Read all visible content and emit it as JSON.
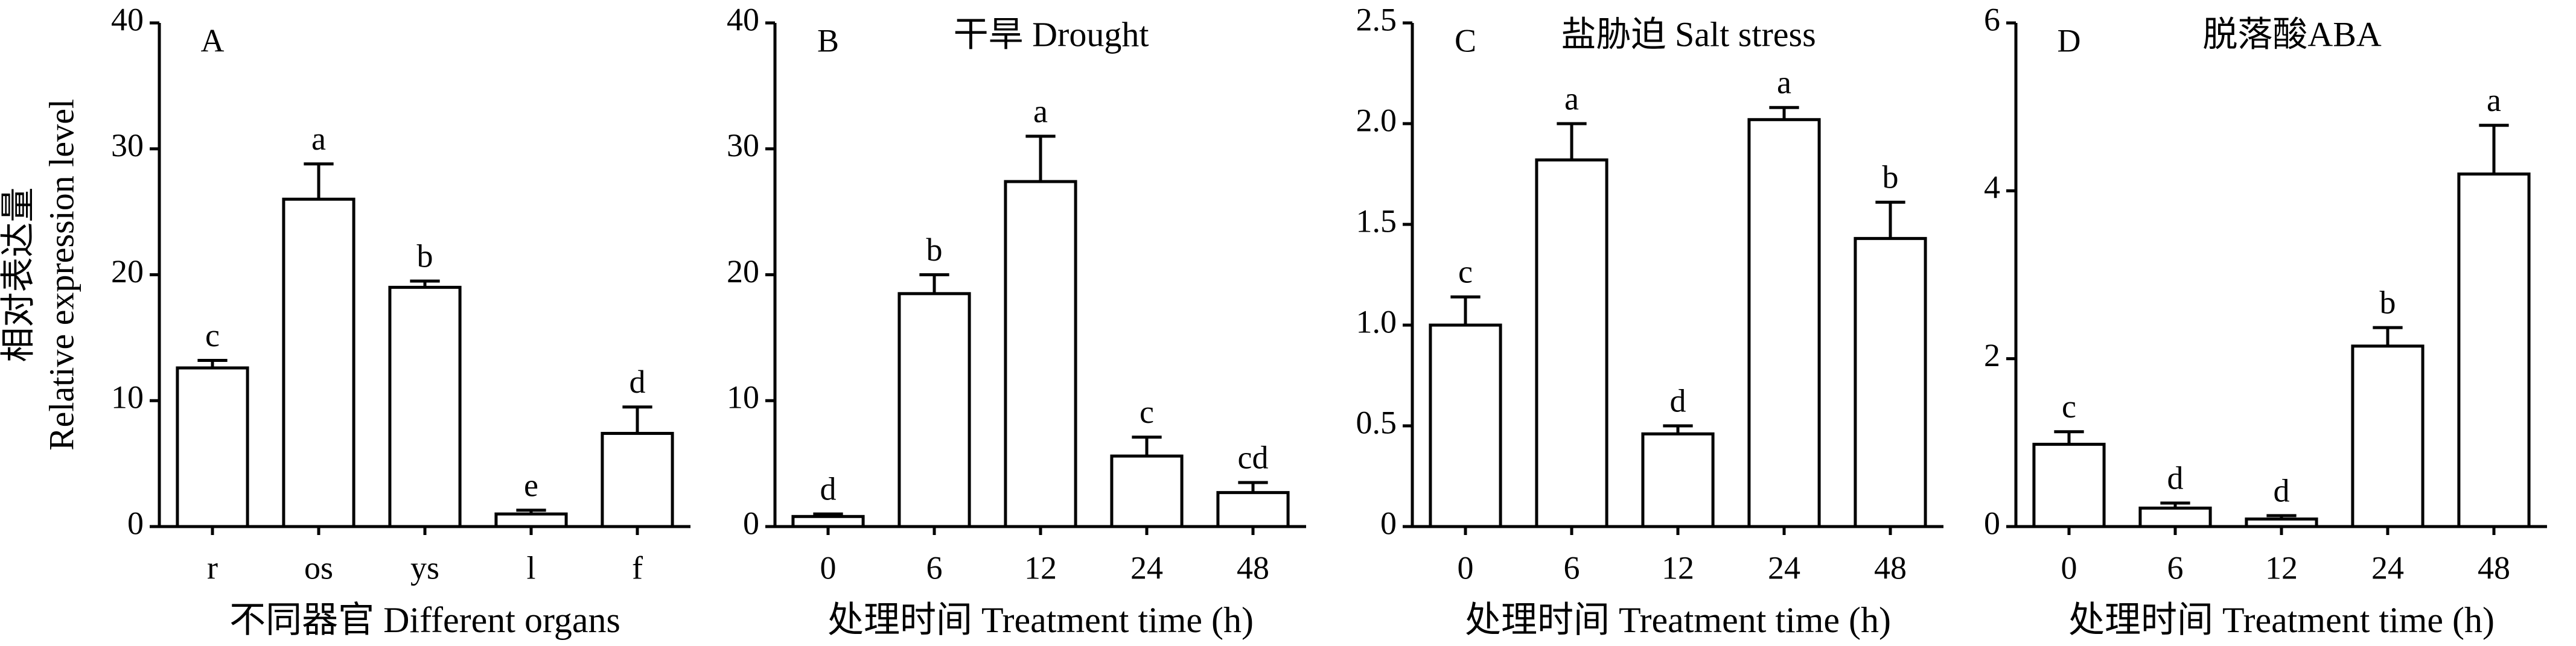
{
  "chart_data": [
    {
      "type": "bar",
      "title": "A",
      "ylabel": [
        "相对表达量",
        "Relative expression level"
      ],
      "xlabel": "不同器官 Different organs",
      "categories": [
        "r",
        "os",
        "ys",
        "l",
        "f"
      ],
      "values": [
        12.6,
        26,
        19,
        1.0,
        7.4
      ],
      "errors": [
        0.6,
        2.8,
        0.5,
        0.3,
        2.1
      ],
      "letters": [
        "c",
        "a",
        "b",
        "e",
        "d"
      ],
      "ylim": [
        0,
        40
      ],
      "yticks": [
        0,
        10,
        20,
        30,
        40
      ],
      "color": "#ffffff"
    },
    {
      "type": "bar",
      "title": "B",
      "subtitle": "干旱 Drought",
      "xlabel": "处理时间 Treatment time (h)",
      "categories": [
        "0",
        "6",
        "12",
        "24",
        "48"
      ],
      "values": [
        0.8,
        18.5,
        27.4,
        5.6,
        2.7
      ],
      "errors": [
        0.2,
        1.5,
        3.6,
        1.5,
        0.8
      ],
      "letters": [
        "d",
        "b",
        "a",
        "c",
        "cd"
      ],
      "ylim": [
        0,
        40
      ],
      "yticks": [
        0,
        10,
        20,
        30,
        40
      ],
      "color": "#ffffff"
    },
    {
      "type": "bar",
      "title": "C",
      "subtitle": "盐胁迫 Salt stress",
      "xlabel": "处理时间 Treatment time (h)",
      "categories": [
        "0",
        "6",
        "12",
        "24",
        "48"
      ],
      "values": [
        1.0,
        1.82,
        0.46,
        2.02,
        1.43
      ],
      "errors": [
        0.14,
        0.18,
        0.04,
        0.06,
        0.18
      ],
      "letters": [
        "c",
        "a",
        "d",
        "a",
        "b"
      ],
      "ylim": [
        0,
        2.5
      ],
      "yticks": [
        0,
        0.5,
        {
          "value": 1,
          "label": "1.0"
        },
        1.5,
        {
          "value": 2,
          "label": "2.0"
        },
        2.5
      ],
      "color": "#ffffff"
    },
    {
      "type": "bar",
      "title": "D",
      "subtitle": "脱落酸ABA",
      "xlabel": "处理时间 Treatment time (h)",
      "categories": [
        "0",
        "6",
        "12",
        "24",
        "48"
      ],
      "values": [
        0.98,
        0.22,
        0.09,
        2.15,
        4.2
      ],
      "errors": [
        0.15,
        0.06,
        0.04,
        0.22,
        0.58
      ],
      "letters": [
        "c",
        "d",
        "d",
        "b",
        "a"
      ],
      "ylim": [
        0,
        6
      ],
      "yticks": [
        0,
        2,
        4,
        6
      ],
      "color": "#ffffff"
    }
  ]
}
